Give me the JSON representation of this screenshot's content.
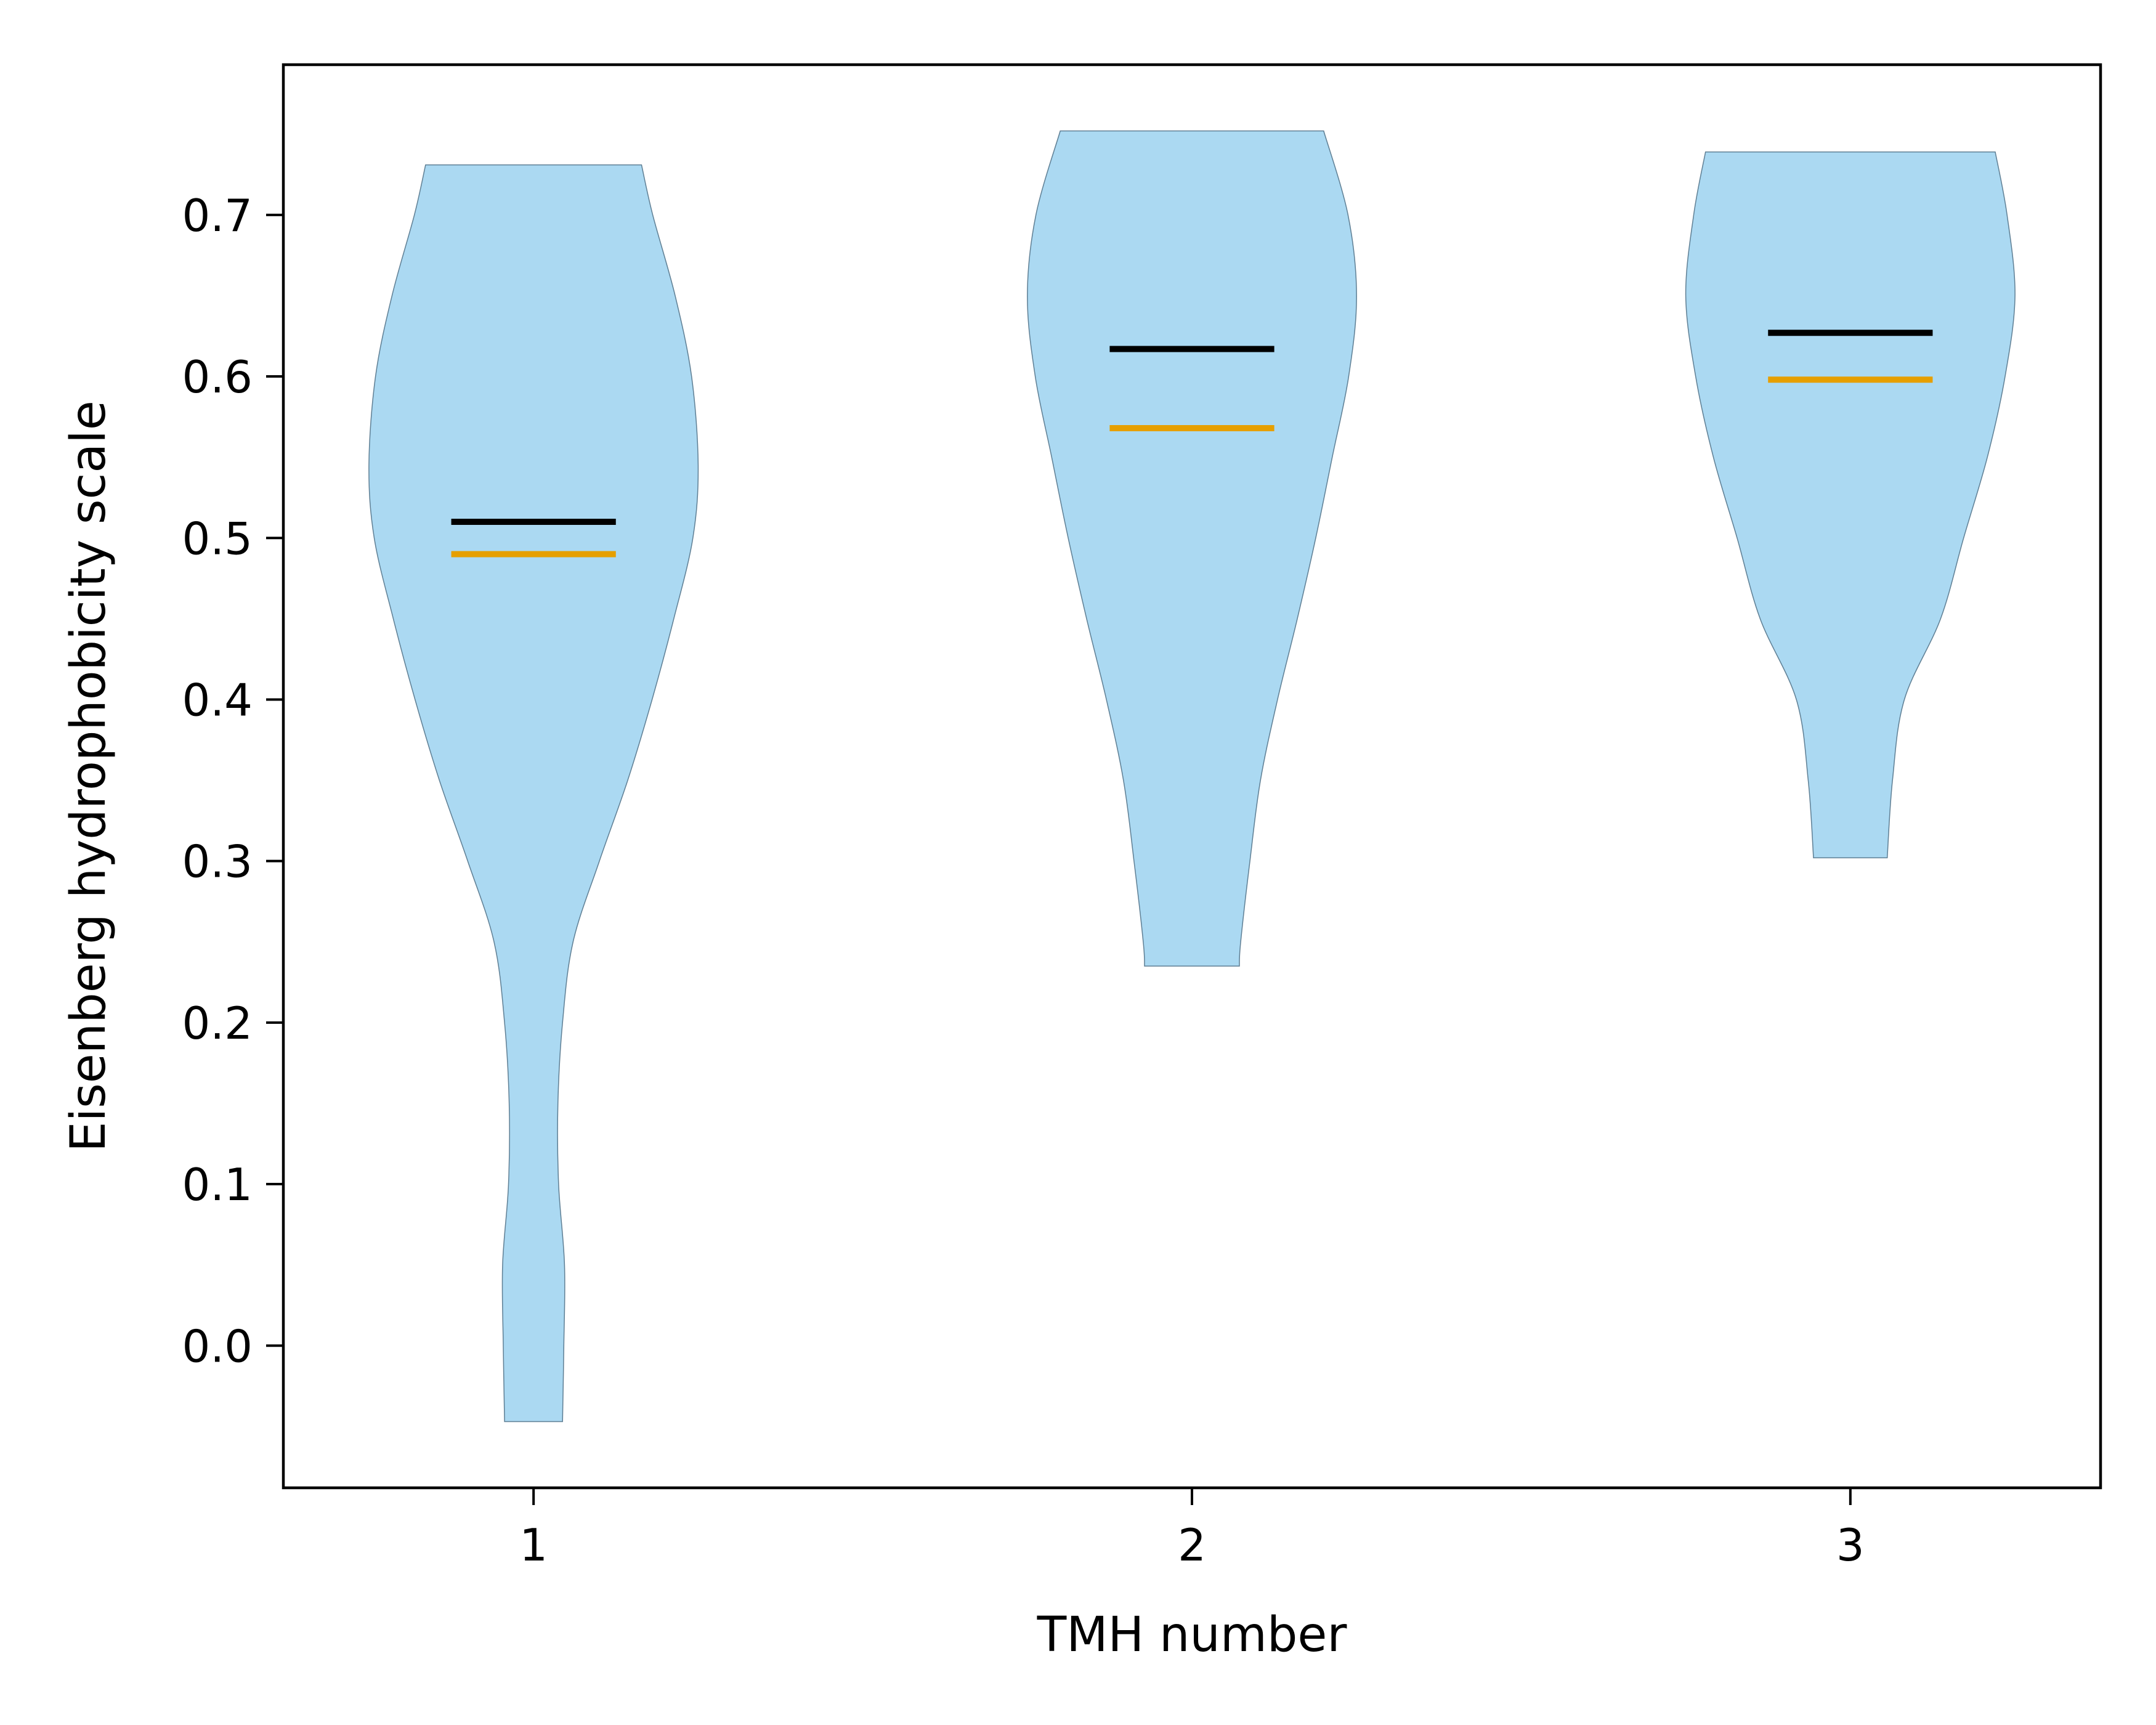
{
  "chart_data": {
    "type": "violin",
    "xlabel": "TMH number",
    "ylabel": "Eisenberg hydrophobicity scale",
    "xlim": [
      0.62,
      3.38
    ],
    "ylim": [
      -0.088,
      0.793
    ],
    "x_ticks": [
      1,
      2,
      3
    ],
    "y_ticks": [
      0.0,
      0.1,
      0.2,
      0.3,
      0.4,
      0.5,
      0.6,
      0.7
    ],
    "grid": false,
    "colors": {
      "violin_fill": "#abd9f2",
      "violin_edge": "#5f7f94",
      "mean_line": "#000000",
      "median_line": "#e69f00"
    },
    "violins": [
      {
        "x": 1,
        "min": -0.047,
        "max": 0.731,
        "mean": 0.51,
        "median": 0.49,
        "profile": [
          [
            -0.047,
            0.044
          ],
          [
            0.0,
            0.046
          ],
          [
            0.05,
            0.047
          ],
          [
            0.1,
            0.038
          ],
          [
            0.15,
            0.037
          ],
          [
            0.2,
            0.044
          ],
          [
            0.25,
            0.06
          ],
          [
            0.3,
            0.1
          ],
          [
            0.35,
            0.143
          ],
          [
            0.4,
            0.18
          ],
          [
            0.45,
            0.213
          ],
          [
            0.5,
            0.242
          ],
          [
            0.545,
            0.25
          ],
          [
            0.6,
            0.24
          ],
          [
            0.65,
            0.215
          ],
          [
            0.7,
            0.181
          ],
          [
            0.731,
            0.164
          ]
        ]
      },
      {
        "x": 2,
        "min": 0.235,
        "max": 0.752,
        "mean": 0.617,
        "median": 0.568,
        "profile": [
          [
            0.235,
            0.072
          ],
          [
            0.25,
            0.074
          ],
          [
            0.3,
            0.088
          ],
          [
            0.35,
            0.104
          ],
          [
            0.4,
            0.13
          ],
          [
            0.45,
            0.16
          ],
          [
            0.5,
            0.188
          ],
          [
            0.55,
            0.213
          ],
          [
            0.6,
            0.238
          ],
          [
            0.65,
            0.25
          ],
          [
            0.7,
            0.237
          ],
          [
            0.752,
            0.2
          ]
        ]
      },
      {
        "x": 3,
        "min": 0.302,
        "max": 0.739,
        "mean": 0.627,
        "median": 0.598,
        "profile": [
          [
            0.302,
            0.056
          ],
          [
            0.35,
            0.064
          ],
          [
            0.4,
            0.082
          ],
          [
            0.45,
            0.137
          ],
          [
            0.5,
            0.172
          ],
          [
            0.55,
            0.208
          ],
          [
            0.6,
            0.235
          ],
          [
            0.65,
            0.25
          ],
          [
            0.7,
            0.238
          ],
          [
            0.739,
            0.22
          ]
        ]
      }
    ]
  }
}
